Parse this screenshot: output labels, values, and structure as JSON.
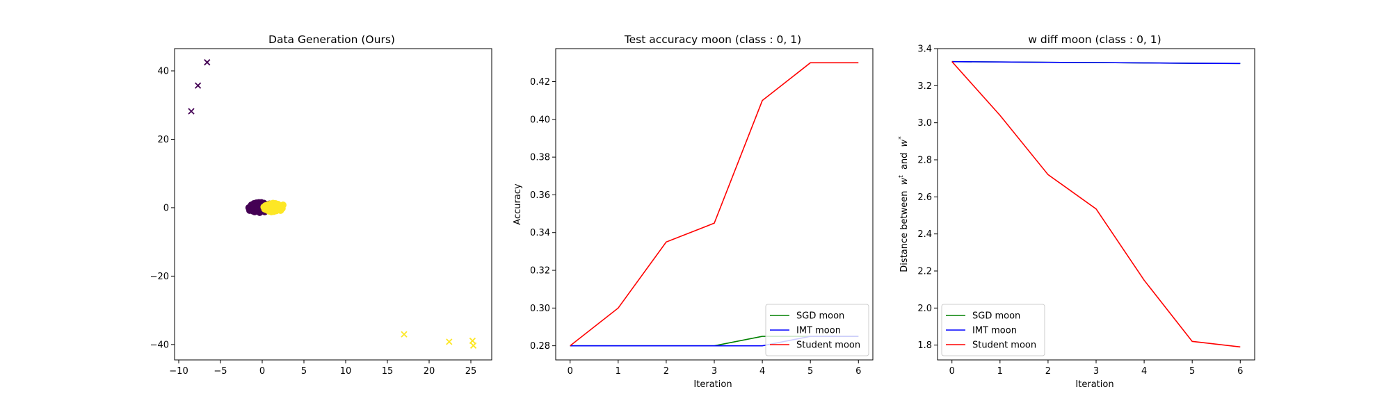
{
  "chart_data": [
    {
      "type": "scatter",
      "title": "Data Generation (Ours)",
      "xlabel": "",
      "ylabel": "",
      "xlim": [
        -10.5,
        27.5
      ],
      "ylim": [
        -44.5,
        46.5
      ],
      "xticks": [
        -10,
        -5,
        0,
        5,
        10,
        15,
        20,
        25
      ],
      "yticks": [
        -40,
        -20,
        0,
        20,
        40
      ],
      "colors": {
        "class0": "#440154",
        "class1": "#fde725"
      },
      "cluster_class0": {
        "x": [
          -1.6,
          -1.3,
          -1.0,
          -0.7,
          -0.4,
          -0.1,
          0.2,
          0.5,
          0.8,
          -1.5,
          -1.1,
          -0.8,
          -0.5,
          -0.2,
          0.1,
          0.4,
          -1.3,
          -0.9,
          -0.6,
          -0.3,
          0.0,
          0.3,
          0.6,
          -1.0,
          -0.6,
          -0.2,
          0.2,
          0.6,
          0.9
        ],
        "y": [
          0.0,
          0.8,
          1.2,
          1.4,
          1.5,
          1.5,
          1.3,
          1.0,
          0.6,
          -0.8,
          -1.0,
          -0.6,
          0.3,
          -0.4,
          0.5,
          -0.3,
          0.4,
          -1.2,
          0.9,
          -1.4,
          1.0,
          -1.2,
          0.2,
          0.2,
          -0.2,
          0.7,
          -0.9,
          -0.5,
          1.1
        ]
      },
      "cluster_class1": {
        "x": [
          0.2,
          0.5,
          0.8,
          1.1,
          1.4,
          1.7,
          2.0,
          2.3,
          2.5,
          0.4,
          0.7,
          1.0,
          1.3,
          1.6,
          1.9,
          2.2,
          0.3,
          0.9,
          1.5,
          2.1,
          2.4,
          1.2,
          0.6,
          1.8
        ],
        "y": [
          0.2,
          -0.6,
          -1.0,
          -1.2,
          -1.1,
          -0.9,
          -0.4,
          0.2,
          0.8,
          0.6,
          0.9,
          1.1,
          1.3,
          1.2,
          1.0,
          -0.8,
          -0.4,
          0.3,
          0.0,
          0.5,
          -0.2,
          0.5,
          -0.1,
          0.7
        ]
      },
      "generated_class0": {
        "x": [
          -6.6,
          -7.7,
          -8.5
        ],
        "y": [
          42.5,
          35.7,
          28.2
        ]
      },
      "generated_class1": {
        "x": [
          17.0,
          22.4,
          25.2,
          25.3
        ],
        "y": [
          -37.0,
          -39.2,
          -38.9,
          -40.3
        ]
      }
    },
    {
      "type": "line",
      "title": "Test accuracy moon (class : 0, 1)",
      "xlabel": "Iteration",
      "ylabel": "Accuracy",
      "xlim": [
        -0.3,
        6.3
      ],
      "ylim": [
        0.2725,
        0.4375
      ],
      "xticks": [
        0,
        1,
        2,
        3,
        4,
        5,
        6
      ],
      "yticks": [
        0.28,
        0.3,
        0.32,
        0.34,
        0.36,
        0.38,
        0.4,
        0.42
      ],
      "ytick_labels": [
        "0.28",
        "0.30",
        "0.32",
        "0.34",
        "0.36",
        "0.38",
        "0.40",
        "0.42"
      ],
      "legend_position": "lower right",
      "x": [
        0,
        1,
        2,
        3,
        4,
        5,
        6
      ],
      "series": [
        {
          "name": "SGD moon",
          "color": "#008000",
          "values": [
            0.28,
            0.28,
            0.28,
            0.28,
            0.285,
            0.285,
            0.285
          ]
        },
        {
          "name": "IMT moon",
          "color": "#0000ff",
          "values": [
            0.28,
            0.28,
            0.28,
            0.28,
            0.28,
            0.285,
            0.285
          ]
        },
        {
          "name": "Student moon",
          "color": "#ff0000",
          "values": [
            0.28,
            0.3,
            0.335,
            0.345,
            0.41,
            0.43,
            0.43
          ]
        }
      ]
    },
    {
      "type": "line",
      "title": "w diff moon (class : 0, 1)",
      "xlabel": "Iteration",
      "ylabel": "Distance between w^t and w^*",
      "ylabel_base": "Distance between",
      "ylabel_w1": "w",
      "ylabel_sup1": "t",
      "ylabel_and": "and",
      "ylabel_w2": "w",
      "ylabel_sup2": "*",
      "xlim": [
        -0.3,
        6.3
      ],
      "ylim": [
        1.72,
        3.4
      ],
      "xticks": [
        0,
        1,
        2,
        3,
        4,
        5,
        6
      ],
      "yticks": [
        1.8,
        2.0,
        2.2,
        2.4,
        2.6,
        2.8,
        3.0,
        3.2,
        3.4
      ],
      "ytick_labels": [
        "1.8",
        "2.0",
        "2.2",
        "2.4",
        "2.6",
        "2.8",
        "3.0",
        "3.2",
        "3.4"
      ],
      "legend_position": "lower left",
      "x": [
        0,
        1,
        2,
        3,
        4,
        5,
        6
      ],
      "series": [
        {
          "name": "SGD moon",
          "color": "#008000",
          "values": [
            3.33,
            3.328,
            3.326,
            3.325,
            3.323,
            3.321,
            3.32
          ]
        },
        {
          "name": "IMT moon",
          "color": "#0000ff",
          "values": [
            3.33,
            3.328,
            3.326,
            3.325,
            3.323,
            3.321,
            3.32
          ]
        },
        {
          "name": "Student moon",
          "color": "#ff0000",
          "values": [
            3.33,
            3.04,
            2.72,
            2.535,
            2.15,
            1.82,
            1.79
          ]
        }
      ]
    }
  ]
}
